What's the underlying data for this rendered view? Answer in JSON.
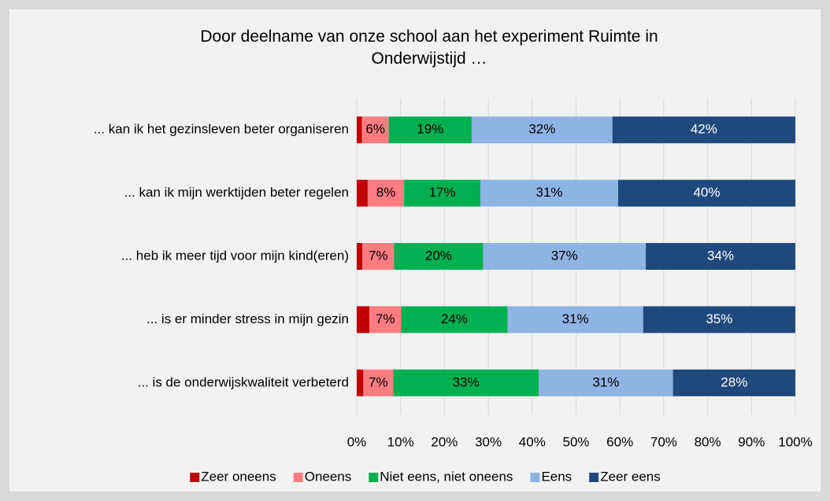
{
  "chart_data": {
    "type": "stacked-barh",
    "title": "Door deelname van onze school aan het experiment Ruimte in Onderwijstijd …",
    "categories": [
      "... kan ik het gezinsleven beter organiseren",
      "... kan ik mijn werktijden beter regelen",
      "... heb ik meer tijd voor mijn kind(eren)",
      "... is er minder stress in mijn gezin",
      "... is de onderwijskwaliteit verbeterd"
    ],
    "series": [
      {
        "name": "Zeer oneens",
        "color": "#c00000",
        "values": [
          1.2,
          2.5,
          1.3,
          2.9,
          1.5
        ]
      },
      {
        "name": "Oneens",
        "color": "#ff7c80",
        "values": [
          6.1,
          8.3,
          7.2,
          7.2,
          6.8
        ],
        "value_labels": [
          "6%",
          "8%",
          "7%",
          "7%",
          "7%"
        ]
      },
      {
        "name": "Niet eens, niet oneens",
        "color": "#00b050",
        "values": [
          18.9,
          17.4,
          20.3,
          24.3,
          33.2
        ],
        "value_labels": [
          "19%",
          "17%",
          "20%",
          "24%",
          "33%"
        ]
      },
      {
        "name": "Eens",
        "color": "#8eb4e3",
        "values": [
          32.1,
          31.4,
          37.1,
          30.9,
          30.6
        ],
        "value_labels": [
          "32%",
          "31%",
          "37%",
          "31%",
          "31%"
        ]
      },
      {
        "name": "Zeer eens",
        "color": "#1f497d",
        "values": [
          41.7,
          40.4,
          34.1,
          34.7,
          27.9
        ],
        "value_labels": [
          "42%",
          "40%",
          "34%",
          "35%",
          "28%"
        ]
      }
    ],
    "xlim": [
      0,
      100
    ],
    "xticks": [
      {
        "value": 0,
        "label": "0%"
      },
      {
        "value": 10,
        "label": "10%"
      },
      {
        "value": 20,
        "label": "20%"
      },
      {
        "value": 30,
        "label": "30%"
      },
      {
        "value": 40,
        "label": "40%"
      },
      {
        "value": 50,
        "label": "50%"
      },
      {
        "value": 60,
        "label": "60%"
      },
      {
        "value": 70,
        "label": "70%"
      },
      {
        "value": 80,
        "label": "80%"
      },
      {
        "value": 90,
        "label": "90%"
      },
      {
        "value": 100,
        "label": "100%"
      }
    ],
    "grid": true,
    "legend": "bottom"
  }
}
